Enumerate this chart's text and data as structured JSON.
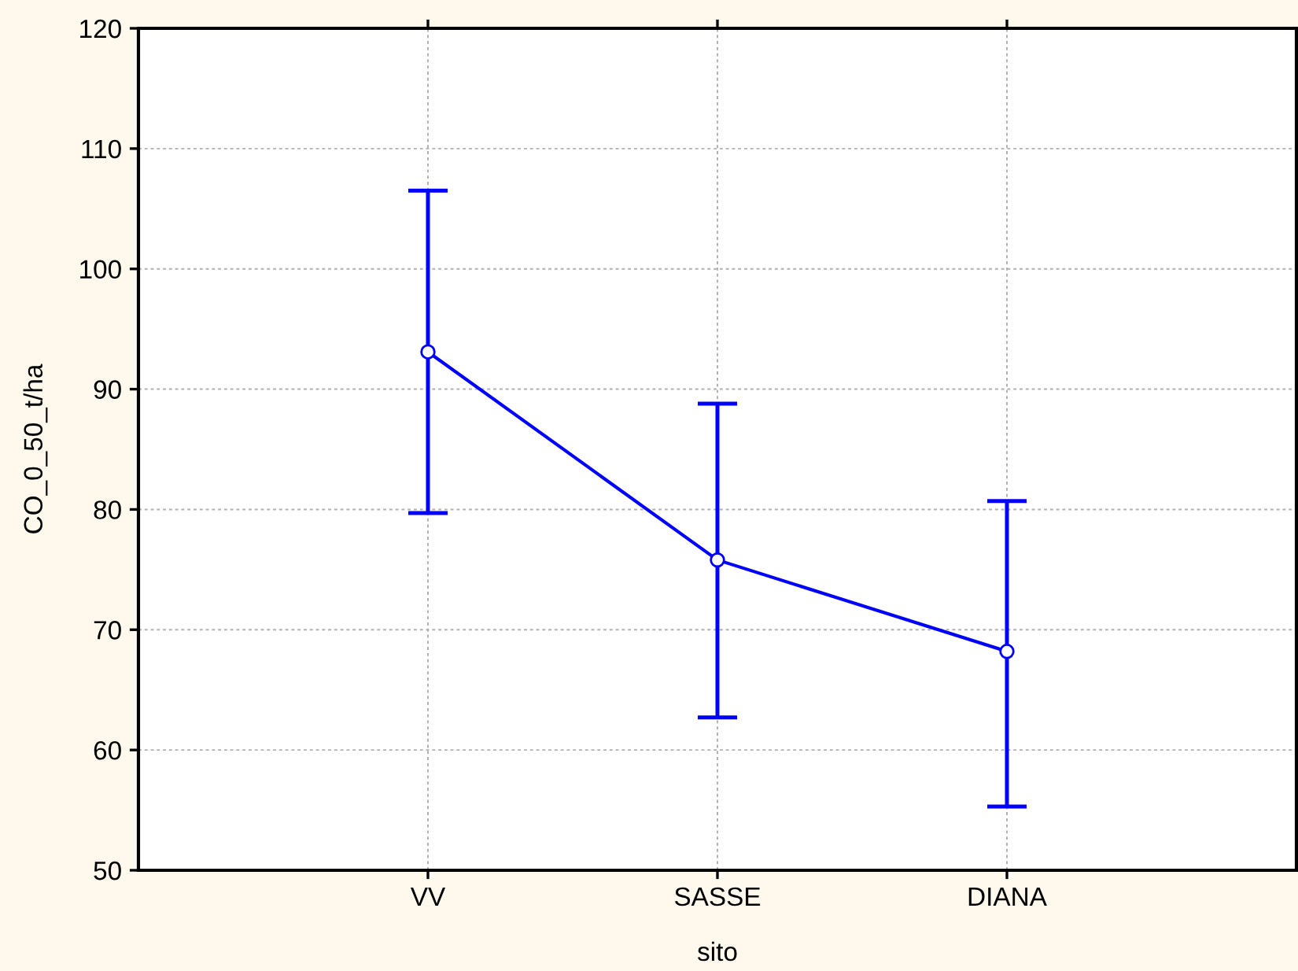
{
  "chart_data": {
    "type": "line",
    "xlabel": "sito",
    "ylabel": "CO_0_50_t/ha",
    "categories": [
      "VV",
      "SASSE",
      "DIANA"
    ],
    "series": [
      {
        "color": "#0000ff",
        "values": [
          93.1,
          75.8,
          68.2
        ],
        "errors": [
          [
            79.7,
            106.5
          ],
          [
            62.7,
            88.8
          ],
          [
            55.3,
            80.7
          ]
        ]
      }
    ],
    "ylim": [
      50,
      120
    ],
    "yticks": [
      50,
      60,
      70,
      80,
      90,
      100,
      110,
      120
    ],
    "grid": true,
    "marker": "circle",
    "line_style": "solid"
  }
}
